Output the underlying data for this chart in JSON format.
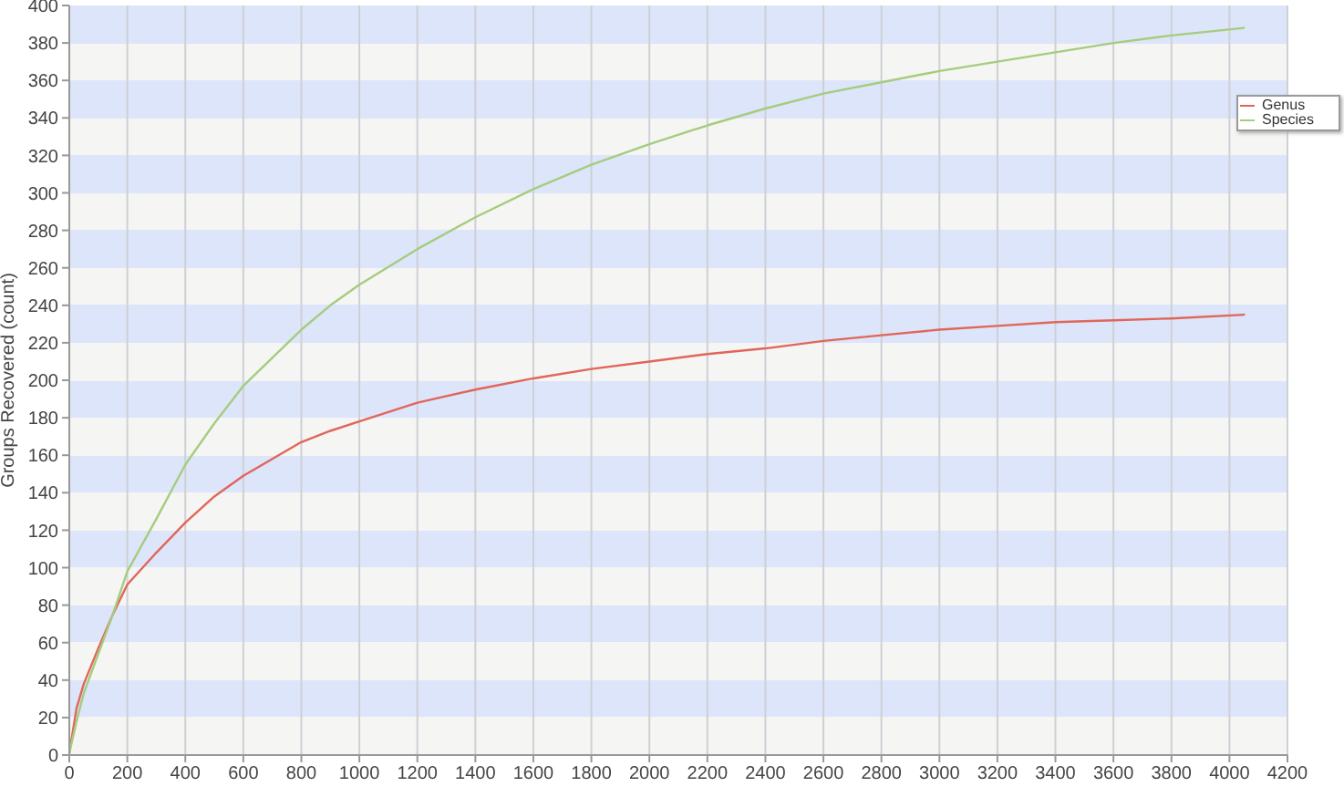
{
  "chart_data": {
    "type": "line",
    "ylabel": "Groups Recovered (count)",
    "x": [
      0,
      25,
      50,
      100,
      150,
      200,
      300,
      400,
      500,
      600,
      700,
      800,
      900,
      1000,
      1200,
      1400,
      1600,
      1800,
      2000,
      2200,
      2400,
      2600,
      2800,
      3000,
      3200,
      3400,
      3600,
      3800,
      4050
    ],
    "xlim": [
      0,
      4200
    ],
    "xticks": [
      0,
      200,
      400,
      600,
      800,
      1000,
      1200,
      1400,
      1600,
      1800,
      2000,
      2200,
      2400,
      2600,
      2800,
      3000,
      3200,
      3400,
      3600,
      3800,
      4000,
      4200
    ],
    "ylim": [
      0,
      400
    ],
    "yticks": [
      0,
      20,
      40,
      60,
      80,
      100,
      120,
      140,
      160,
      180,
      200,
      220,
      240,
      260,
      280,
      300,
      320,
      340,
      360,
      380,
      400
    ],
    "grid": true,
    "legend": "top right",
    "series": [
      {
        "name": "Genus",
        "color": "#e0665a",
        "values": [
          1,
          25,
          38,
          57,
          75,
          91,
          108,
          124,
          138,
          149,
          158,
          167,
          173,
          178,
          188,
          195,
          201,
          206,
          210,
          214,
          217,
          221,
          224,
          227,
          229,
          231,
          232,
          233,
          235
        ]
      },
      {
        "name": "Species",
        "color": "#a6cc7e",
        "values": [
          1,
          18,
          33,
          54,
          75,
          98,
          126,
          155,
          177,
          197,
          212,
          227,
          240,
          251,
          270,
          287,
          302,
          315,
          326,
          336,
          345,
          353,
          359,
          365,
          370,
          375,
          380,
          384,
          388
        ]
      }
    ]
  }
}
